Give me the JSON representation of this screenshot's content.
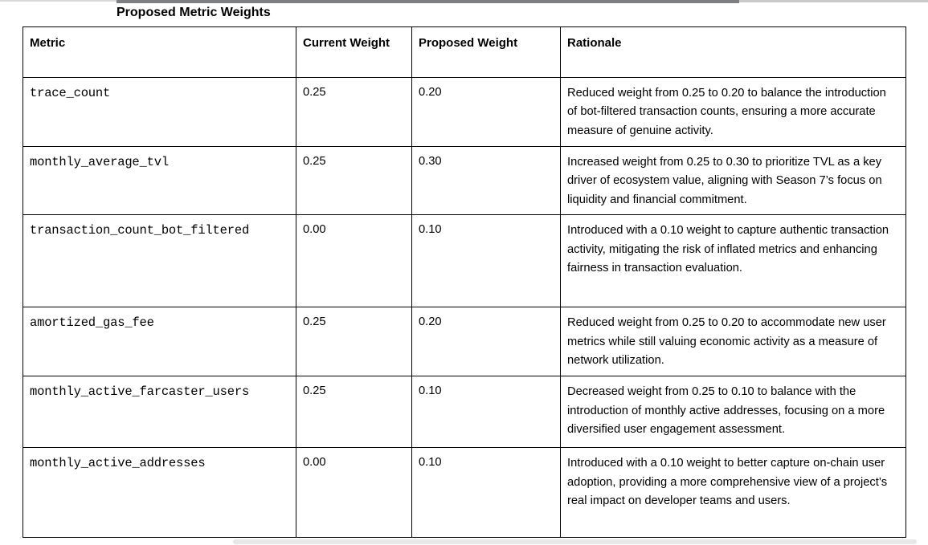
{
  "page": {
    "title": "Proposed Metric Weights"
  },
  "colors": {
    "table_border": "#000000",
    "text": "#000000",
    "top_strip_dark": "#7d7f82",
    "top_strip_light": "#c9c9c9",
    "scrollbar_thumb": "#e7e7e7"
  },
  "table": {
    "headers": [
      "Metric",
      "Current Weight",
      "Proposed Weight",
      "Rationale"
    ],
    "rows": [
      {
        "metric": "trace_count",
        "current_weight": "0.25",
        "proposed_weight": "0.20",
        "rationale": "Reduced weight from 0.25 to 0.20 to balance the introduction of bot-filtered transaction counts, ensuring a more accurate measure of genuine activity."
      },
      {
        "metric": "monthly_average_tvl",
        "current_weight": "0.25",
        "proposed_weight": "0.30",
        "rationale": "Increased weight from 0.25 to 0.30 to prioritize TVL as a key driver of ecosystem value, aligning with Season 7’s focus on liquidity and financial commitment."
      },
      {
        "metric": "transaction_count_bot_filtered",
        "current_weight": "0.00",
        "proposed_weight": "0.10",
        "rationale": "Introduced with a 0.10 weight to capture authentic transaction activity, mitigating the risk of inflated metrics and enhancing fairness in transaction evaluation."
      },
      {
        "metric": "amortized_gas_fee",
        "current_weight": "0.25",
        "proposed_weight": "0.20",
        "rationale": "Reduced weight from 0.25 to 0.20 to accommodate new user metrics while still valuing economic activity as a measure of network utilization."
      },
      {
        "metric": "monthly_active_farcaster_users",
        "current_weight": "0.25",
        "proposed_weight": "0.10",
        "rationale": "Decreased weight from 0.25 to 0.10 to balance with the introduction of monthly active addresses, focusing on a more diversified user engagement assessment."
      },
      {
        "metric": "monthly_active_addresses",
        "current_weight": "0.00",
        "proposed_weight": "0.10",
        "rationale": "Introduced with a 0.10 weight to better capture on-chain user adoption, providing a more comprehensive view of a project’s real impact on developer teams and users."
      }
    ]
  }
}
